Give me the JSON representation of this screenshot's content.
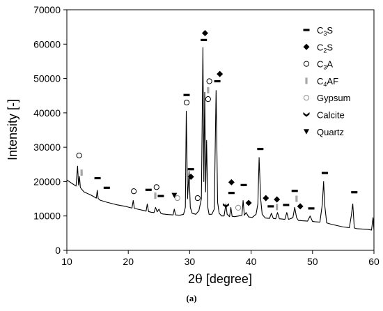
{
  "caption": "(a)",
  "chart_data": {
    "type": "line",
    "xlabel_prefix": "2",
    "xlabel_theta": "θ",
    "xlabel_suffix": " [degree]",
    "ylabel": "Intensity [-]",
    "xlim": [
      10,
      60
    ],
    "ylim": [
      0,
      70000
    ],
    "xticks": [
      10,
      20,
      30,
      40,
      50,
      60
    ],
    "yticks": [
      0,
      10000,
      20000,
      30000,
      40000,
      50000,
      60000,
      70000
    ],
    "grid": false,
    "legend_position": "top-right",
    "legend": [
      {
        "key": "c3s",
        "base": "C",
        "sub": "3",
        "rest": "S",
        "marker": "dash"
      },
      {
        "key": "c2s",
        "base": "C",
        "sub": "2",
        "rest": "S",
        "marker": "diamond"
      },
      {
        "key": "c3a",
        "base": "C",
        "sub": "3",
        "rest": "A",
        "marker": "open-circle"
      },
      {
        "key": "c4af",
        "base": "C",
        "sub": "4",
        "rest": "AF",
        "marker": "gray-bar"
      },
      {
        "key": "gypsum",
        "base": "Gypsum",
        "sub": "",
        "rest": "",
        "marker": "gray-circle"
      },
      {
        "key": "calcite",
        "base": "Calcite",
        "sub": "",
        "rest": "",
        "marker": "chevron"
      },
      {
        "key": "quartz",
        "base": "Quartz",
        "sub": "",
        "rest": "",
        "marker": "triangle-down"
      }
    ],
    "series": [
      {
        "x": [
          10.0,
          10.8,
          11.5,
          11.75,
          11.9,
          12.05,
          12.2,
          12.4,
          12.8,
          14.0,
          14.8,
          14.95,
          15.1,
          15.4,
          16.5,
          18.0,
          19.5,
          20.6,
          20.8,
          21.0,
          21.5,
          22.5,
          22.9,
          23.1,
          23.3,
          23.7,
          24.2,
          24.45,
          24.7,
          25.0,
          25.3,
          25.6,
          26.5,
          27.3,
          27.5,
          27.7,
          28.4,
          29.0,
          29.3,
          29.45,
          29.65,
          29.9,
          30.1,
          30.4,
          31.0,
          31.5,
          31.9,
          32.15,
          32.3,
          32.45,
          32.6,
          32.75,
          32.95,
          33.15,
          33.6,
          34.0,
          34.3,
          34.55,
          34.8,
          35.2,
          35.6,
          35.9,
          36.1,
          36.5,
          36.7,
          36.9,
          37.3,
          38.0,
          38.5,
          38.7,
          38.9,
          39.2,
          39.6,
          40.2,
          40.8,
          41.1,
          41.3,
          41.55,
          41.8,
          42.3,
          43.0,
          43.3,
          43.6,
          44.0,
          44.3,
          44.6,
          45.0,
          45.5,
          45.8,
          46.1,
          46.8,
          47.1,
          47.4,
          47.7,
          48.3,
          49.2,
          49.6,
          50.0,
          50.5,
          51.2,
          51.6,
          51.8,
          52.0,
          52.3,
          53.0,
          54.0,
          55.0,
          56.0,
          56.3,
          56.55,
          56.8,
          57.2,
          58.0,
          59.0,
          59.6,
          59.85,
          60.0
        ],
        "y": [
          20500,
          19500,
          18700,
          24500,
          19000,
          21500,
          18300,
          17800,
          17000,
          16000,
          15200,
          17500,
          15100,
          14600,
          14000,
          13300,
          12800,
          12300,
          14500,
          12200,
          12000,
          11600,
          11400,
          13500,
          11300,
          11100,
          11000,
          12500,
          11200,
          12000,
          10800,
          10600,
          10400,
          10300,
          12000,
          10300,
          10200,
          10500,
          12500,
          40500,
          15000,
          23000,
          12500,
          10800,
          10500,
          11500,
          15000,
          59000,
          20000,
          46000,
          17000,
          32000,
          12500,
          10500,
          10500,
          12000,
          46500,
          14000,
          10800,
          10000,
          10000,
          13500,
          10500,
          9800,
          12500,
          9900,
          9800,
          10000,
          10200,
          14500,
          10200,
          11000,
          9700,
          9600,
          10500,
          13500,
          27000,
          15000,
          10500,
          9400,
          9300,
          10800,
          9300,
          9200,
          11000,
          9200,
          9100,
          9000,
          11000,
          9000,
          9500,
          12500,
          9500,
          8700,
          8600,
          8500,
          10000,
          8400,
          8300,
          8200,
          13500,
          20000,
          13000,
          8000,
          7600,
          7200,
          6800,
          6600,
          10000,
          13500,
          6500,
          6300,
          6200,
          6100,
          5900,
          9500,
          5900
        ]
      }
    ],
    "annotations": [
      {
        "marker": "open-circle",
        "x": 12.0,
        "y": 27600
      },
      {
        "marker": "gray-bar",
        "x": 12.4,
        "y": 22600
      },
      {
        "marker": "dash",
        "x": 15.0,
        "y": 21000
      },
      {
        "marker": "dash",
        "x": 16.5,
        "y": 18200
      },
      {
        "marker": "open-circle",
        "x": 20.9,
        "y": 17200
      },
      {
        "marker": "dash",
        "x": 23.3,
        "y": 17600
      },
      {
        "marker": "open-circle",
        "x": 24.6,
        "y": 18400
      },
      {
        "marker": "gray-bar",
        "x": 24.4,
        "y": 15900
      },
      {
        "marker": "dash",
        "x": 25.3,
        "y": 15800
      },
      {
        "marker": "triangle-down",
        "x": 27.5,
        "y": 16000
      },
      {
        "marker": "gray-circle",
        "x": 28.0,
        "y": 15200
      },
      {
        "marker": "dash",
        "x": 29.5,
        "y": 45200
      },
      {
        "marker": "open-circle",
        "x": 29.5,
        "y": 43000
      },
      {
        "marker": "dash",
        "x": 30.2,
        "y": 23600
      },
      {
        "marker": "diamond",
        "x": 30.2,
        "y": 21400
      },
      {
        "marker": "open-circle",
        "x": 31.3,
        "y": 15200
      },
      {
        "marker": "diamond",
        "x": 32.5,
        "y": 63200
      },
      {
        "marker": "dash",
        "x": 32.3,
        "y": 61200
      },
      {
        "marker": "open-circle",
        "x": 33.2,
        "y": 49200
      },
      {
        "marker": "gray-bar",
        "x": 33.0,
        "y": 46600
      },
      {
        "marker": "open-circle",
        "x": 33.0,
        "y": 44000
      },
      {
        "marker": "diamond",
        "x": 34.9,
        "y": 51300
      },
      {
        "marker": "dash",
        "x": 34.5,
        "y": 49200
      },
      {
        "marker": "chevron",
        "x": 35.9,
        "y": 13000
      },
      {
        "marker": "dash",
        "x": 36.8,
        "y": 16700
      },
      {
        "marker": "diamond",
        "x": 36.8,
        "y": 19800
      },
      {
        "marker": "gray-circle",
        "x": 37.9,
        "y": 12400
      },
      {
        "marker": "dash",
        "x": 38.8,
        "y": 19000
      },
      {
        "marker": "diamond",
        "x": 39.6,
        "y": 13800
      },
      {
        "marker": "dash",
        "x": 41.5,
        "y": 29500
      },
      {
        "marker": "diamond",
        "x": 42.4,
        "y": 15200
      },
      {
        "marker": "dash",
        "x": 43.2,
        "y": 12800
      },
      {
        "marker": "diamond",
        "x": 44.2,
        "y": 14800
      },
      {
        "marker": "gray-bar",
        "x": 44.2,
        "y": 12600
      },
      {
        "marker": "dash",
        "x": 45.7,
        "y": 13200
      },
      {
        "marker": "dash",
        "x": 47.1,
        "y": 17300
      },
      {
        "marker": "gray-bar",
        "x": 47.4,
        "y": 15000
      },
      {
        "marker": "diamond",
        "x": 48.0,
        "y": 12800
      },
      {
        "marker": "dash",
        "x": 49.8,
        "y": 12200
      },
      {
        "marker": "dash",
        "x": 52.0,
        "y": 22500
      },
      {
        "marker": "dash",
        "x": 56.8,
        "y": 16900
      }
    ]
  }
}
